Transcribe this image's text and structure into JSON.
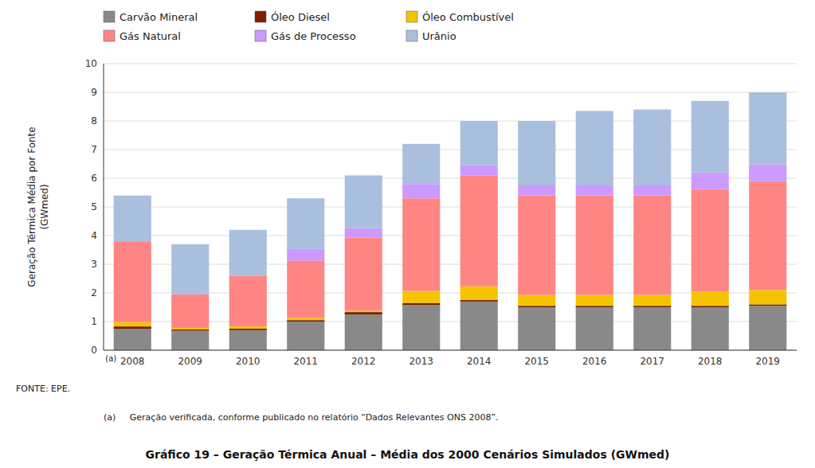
{
  "chart_data": {
    "type": "bar",
    "stacked": true,
    "title": "Gráfico 19 – Geração Térmica Anual – Média dos 2000 Cenários Simulados (GWmed)",
    "y_label": "Geração Térmica Média por Fonte\n(GWmed)",
    "categories": [
      "2008",
      "2009",
      "2010",
      "2011",
      "2012",
      "2013",
      "2014",
      "2015",
      "2016",
      "2017",
      "2018",
      "2019"
    ],
    "series": [
      {
        "name": "Carvão Mineral",
        "color": "#898989",
        "values": [
          0.75,
          0.68,
          0.7,
          1.0,
          1.25,
          1.58,
          1.7,
          1.5,
          1.5,
          1.5,
          1.5,
          1.55
        ]
      },
      {
        "name": "Óleo Diesel",
        "color": "#7B2000",
        "values": [
          0.08,
          0.05,
          0.05,
          0.05,
          0.08,
          0.07,
          0.05,
          0.05,
          0.05,
          0.05,
          0.05,
          0.05
        ]
      },
      {
        "name": "Óleo Combustível",
        "color": "#F5C400",
        "values": [
          0.15,
          0.05,
          0.08,
          0.08,
          0.05,
          0.42,
          0.48,
          0.38,
          0.38,
          0.38,
          0.5,
          0.5
        ]
      },
      {
        "name": "Gás Natural",
        "color": "#FF8585",
        "values": [
          2.82,
          1.17,
          1.77,
          2.0,
          2.55,
          3.23,
          3.87,
          3.47,
          3.47,
          3.47,
          3.57,
          3.8
        ]
      },
      {
        "name": "Gás de Processo",
        "color": "#CC99FF",
        "values": [
          0.0,
          0.0,
          0.0,
          0.4,
          0.33,
          0.5,
          0.35,
          0.35,
          0.35,
          0.35,
          0.58,
          0.58
        ]
      },
      {
        "name": "Urânio",
        "color": "#AABFDD",
        "values": [
          1.6,
          1.75,
          1.6,
          1.77,
          1.84,
          1.4,
          1.55,
          2.25,
          2.6,
          2.65,
          2.5,
          2.52
        ]
      }
    ],
    "ylim": [
      0,
      10
    ],
    "yticks": [
      0,
      1,
      2,
      3,
      4,
      5,
      6,
      7,
      8,
      9,
      10
    ],
    "grid": true,
    "legend": "top",
    "annotations": [
      "(a)",
      "FONTE:  EPE.",
      "(a)     Geração verificada, conforme publicado no relatório “Dados Relevantes ONS 2008”."
    ]
  }
}
